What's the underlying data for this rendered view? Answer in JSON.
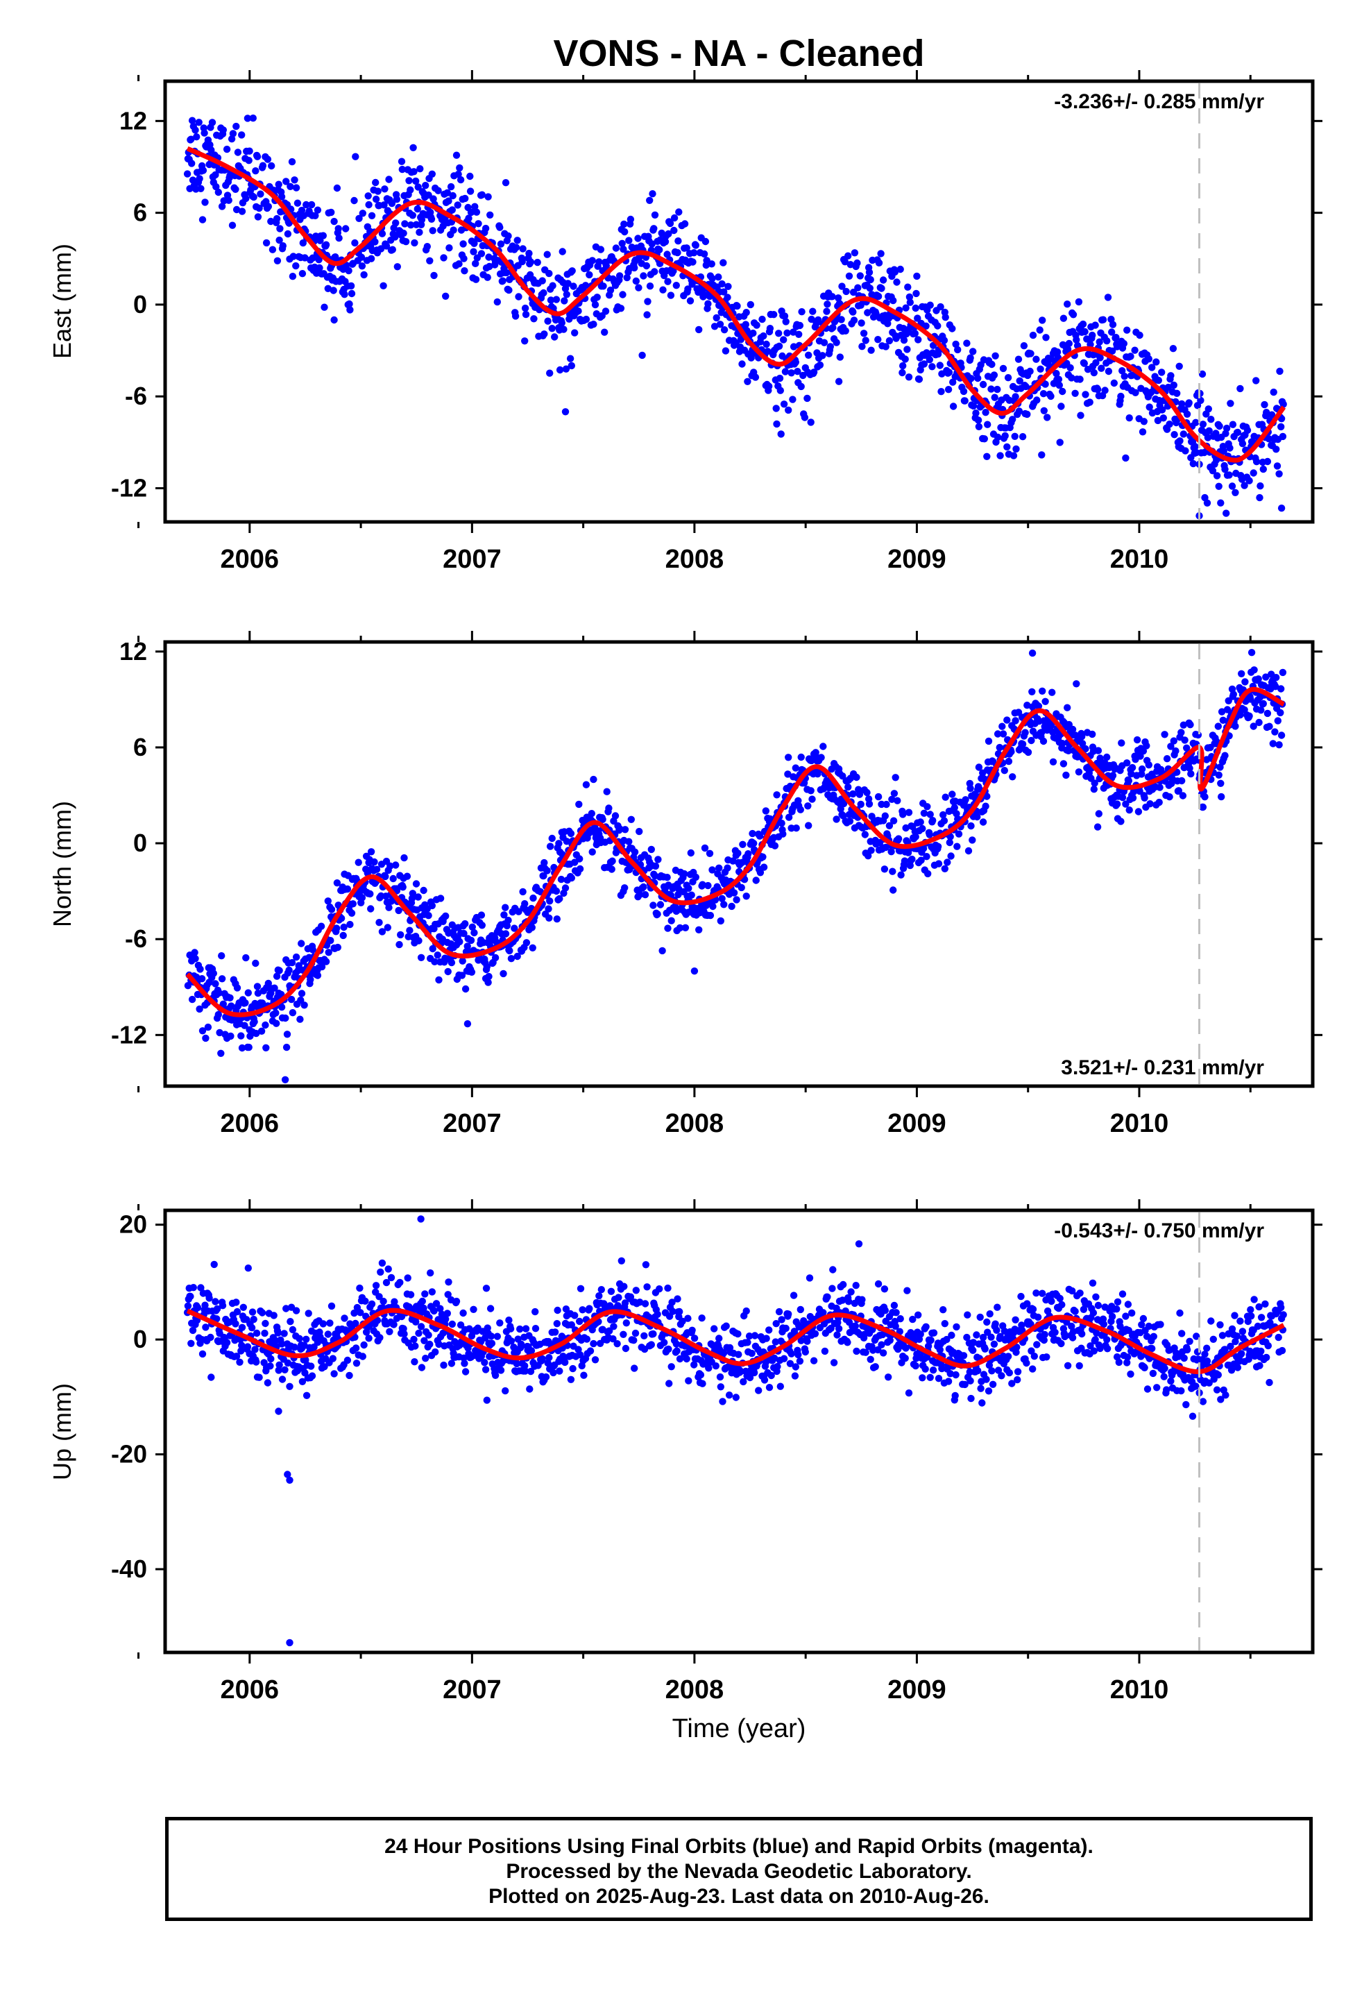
{
  "title": "VONS  - NA - Cleaned",
  "footer": {
    "line1": "24 Hour Positions Using Final Orbits (blue) and Rapid Orbits (magenta).",
    "line2": "Processed by the Nevada Geodetic Laboratory.",
    "line3": "Plotted on 2025-Aug-23. Last data on 2010-Aug-26."
  },
  "colors": {
    "points": "#0000ff",
    "model": "#ff0000",
    "event_line": "#c0c0c0",
    "axis": "#000000"
  },
  "chart_data": [
    {
      "type": "scatter",
      "component": "east",
      "ylabel": "East (mm)",
      "xlabel": "",
      "rate": "-3.236+/- 0.285 mm/yr",
      "rate_position": "top-right",
      "xlim": [
        2005.62,
        2010.78
      ],
      "ylim": [
        -14.2,
        14.6
      ],
      "yticks": [
        -12,
        -6,
        0,
        6,
        12
      ],
      "ytick_labels": [
        "-12",
        "-6",
        "0",
        "6",
        "12"
      ],
      "xticks": [
        2006,
        2007,
        2008,
        2009,
        2010
      ],
      "xtick_labels": [
        "2006",
        "2007",
        "2008",
        "2009",
        "2010"
      ],
      "event_line_x": 2010.27,
      "data_range": [
        2005.72,
        2010.65
      ],
      "trend": -3.236,
      "intercept": 9.7,
      "seasonal_amplitude": 3.0,
      "seasonal_phase": 5.3,
      "noise_sd": 1.6,
      "outliers": [
        {
          "x": 2006.38,
          "y": -1.0
        },
        {
          "x": 2007.42,
          "y": -7.0
        },
        {
          "x": 2008.37,
          "y": -7.8
        },
        {
          "x": 2010.27,
          "y": -13.8
        },
        {
          "x": 2010.64,
          "y": -13.3
        }
      ],
      "model_curve": {
        "x": [
          2005.72,
          2005.9,
          2006.1,
          2006.25,
          2006.38,
          2006.5,
          2006.72,
          2006.9,
          2007.1,
          2007.25,
          2007.38,
          2007.5,
          2007.72,
          2007.9,
          2008.1,
          2008.25,
          2008.38,
          2008.5,
          2008.72,
          2008.9,
          2009.1,
          2009.25,
          2009.38,
          2009.5,
          2009.72,
          2009.9,
          2010.1,
          2010.25,
          2010.4,
          2010.5,
          2010.65
        ],
        "y": [
          10.2,
          9.0,
          7.2,
          4.5,
          2.7,
          3.8,
          6.6,
          5.8,
          3.7,
          0.9,
          -0.6,
          0.6,
          3.3,
          2.6,
          0.6,
          -2.5,
          -3.9,
          -2.6,
          0.3,
          -0.5,
          -2.6,
          -5.6,
          -7.1,
          -5.8,
          -3.0,
          -3.6,
          -5.7,
          -8.6,
          -10.1,
          -9.6,
          -6.7
        ]
      }
    },
    {
      "type": "scatter",
      "component": "north",
      "ylabel": "North (mm)",
      "xlabel": "",
      "rate": "3.521+/- 0.231 mm/yr",
      "rate_position": "bottom-right",
      "xlim": [
        2005.62,
        2010.78
      ],
      "ylim": [
        -15.2,
        12.6
      ],
      "yticks": [
        -12,
        -6,
        0,
        6,
        12
      ],
      "ytick_labels": [
        "-12",
        "-6",
        "0",
        "6",
        "12"
      ],
      "xticks": [
        2006,
        2007,
        2008,
        2009,
        2010
      ],
      "xtick_labels": [
        "2006",
        "2007",
        "2008",
        "2009",
        "2010"
      ],
      "event_line_x": 2010.27,
      "data_range": [
        2005.72,
        2010.65
      ],
      "trend": 3.521,
      "intercept": -9.0,
      "seasonal_amplitude": 2.8,
      "seasonal_phase": 1.1,
      "noise_sd": 1.1,
      "outliers": [
        {
          "x": 2006.16,
          "y": -14.8
        },
        {
          "x": 2006.98,
          "y": -11.3
        },
        {
          "x": 2008.0,
          "y": -8.0
        },
        {
          "x": 2009.52,
          "y": 11.9
        }
      ],
      "model_curve": {
        "x": [
          2005.72,
          2005.9,
          2006.1,
          2006.25,
          2006.4,
          2006.55,
          2006.72,
          2006.9,
          2007.1,
          2007.25,
          2007.4,
          2007.55,
          2007.72,
          2007.9,
          2008.1,
          2008.25,
          2008.4,
          2008.55,
          2008.72,
          2008.9,
          2009.1,
          2009.25,
          2009.4,
          2009.55,
          2009.72,
          2009.9,
          2010.1,
          2010.27,
          2010.28,
          2010.4,
          2010.5,
          2010.65
        ],
        "y": [
          -8.2,
          -10.6,
          -10.2,
          -8.2,
          -4.4,
          -2.1,
          -4.4,
          -6.9,
          -6.6,
          -4.9,
          -1.4,
          1.3,
          -1.2,
          -3.6,
          -3.2,
          -1.4,
          2.3,
          4.8,
          2.2,
          -0.1,
          0.4,
          2.1,
          5.8,
          8.3,
          6.0,
          3.6,
          4.1,
          6.0,
          3.4,
          7.3,
          9.6,
          8.7
        ]
      }
    },
    {
      "type": "scatter",
      "component": "up",
      "ylabel": "Up (mm)",
      "xlabel": "Time (year)",
      "rate": "-0.543+/- 0.750 mm/yr",
      "rate_position": "top-right",
      "xlim": [
        2005.62,
        2010.78
      ],
      "ylim": [
        -54.5,
        22.5
      ],
      "yticks": [
        -40,
        -20,
        0,
        20
      ],
      "ytick_labels": [
        "-40",
        "-20",
        "0",
        "20"
      ],
      "xticks": [
        2006,
        2007,
        2008,
        2009,
        2010
      ],
      "xtick_labels": [
        "2006",
        "2007",
        "2008",
        "2009",
        "2010"
      ],
      "event_line_x": 2010.27,
      "data_range": [
        2005.72,
        2010.65
      ],
      "trend": -0.543,
      "intercept": 1.0,
      "seasonal_amplitude": 4.5,
      "seasonal_phase": 0.9,
      "noise_sd": 3.2,
      "outliers": [
        {
          "x": 2006.17,
          "y": -23.5
        },
        {
          "x": 2006.18,
          "y": -24.5
        },
        {
          "x": 2006.18,
          "y": -52.8
        },
        {
          "x": 2006.77,
          "y": 21.0
        },
        {
          "x": 2006.13,
          "y": -12.5
        }
      ],
      "model_curve": {
        "x": [
          2005.72,
          2005.95,
          2006.2,
          2006.4,
          2006.62,
          2006.85,
          2007.05,
          2007.22,
          2007.4,
          2007.62,
          2007.85,
          2008.05,
          2008.22,
          2008.4,
          2008.62,
          2008.85,
          2009.05,
          2009.22,
          2009.4,
          2009.62,
          2009.85,
          2010.05,
          2010.27,
          2010.45,
          2010.65
        ],
        "y": [
          5.0,
          1.0,
          -2.8,
          -0.5,
          5.0,
          2.5,
          -1.5,
          -3.2,
          -0.8,
          4.8,
          2.0,
          -2.0,
          -4.2,
          -1.2,
          4.2,
          1.8,
          -2.2,
          -4.6,
          -1.5,
          3.8,
          1.5,
          -2.5,
          -5.6,
          -1.5,
          2.5
        ]
      }
    }
  ]
}
